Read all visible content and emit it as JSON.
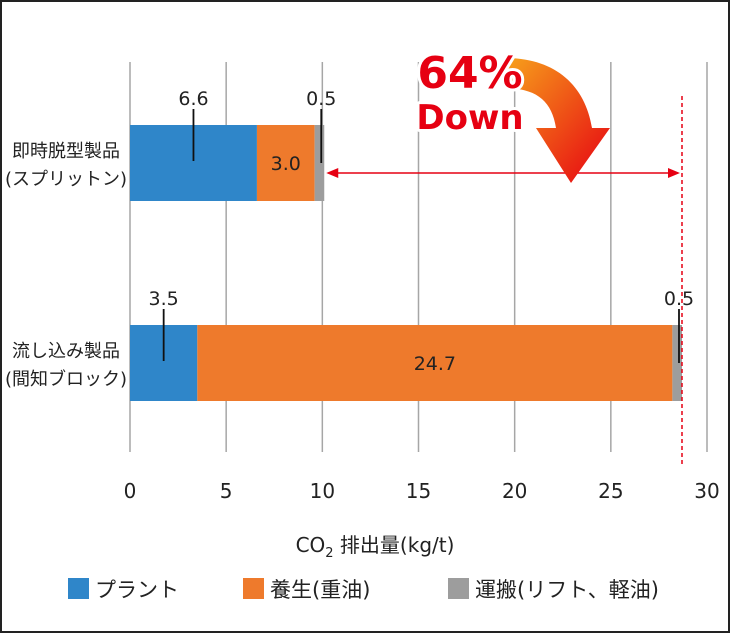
{
  "chart_data": {
    "type": "bar",
    "orientation": "horizontal",
    "stacked": true,
    "categories": [
      {
        "line1": "即時脱型製品",
        "line2": "(スプリットン)"
      },
      {
        "line1": "流し込み製品",
        "line2": "(間知ブロック)"
      }
    ],
    "series": [
      {
        "name": "プラント",
        "color": "#2f86c9",
        "values": [
          6.6,
          3.5
        ]
      },
      {
        "name": "養生(重油)",
        "color": "#ee7a2c",
        "values": [
          3.0,
          24.7
        ]
      },
      {
        "name": "運搬(リフト、軽油)",
        "color": "#9d9d9d",
        "values": [
          0.5,
          0.5
        ]
      }
    ],
    "data_labels": [
      [
        "6.6",
        "3.0",
        "0.5"
      ],
      [
        "3.5",
        "24.7",
        "0.5"
      ]
    ],
    "xlim": [
      0,
      30
    ],
    "xticks": [
      0,
      5,
      10,
      15,
      20,
      25,
      30
    ],
    "xlabel_main": "CO",
    "xlabel_sub": "2",
    "xlabel_rest": " 排出量(kg/t)",
    "grid": true,
    "legend_position": "bottom",
    "annotation": {
      "line1": "64%",
      "line2": "Down",
      "text_color": "#e60012",
      "arrow_color": "#e60012",
      "arrow_gradient_start": "#f7a21b"
    }
  }
}
